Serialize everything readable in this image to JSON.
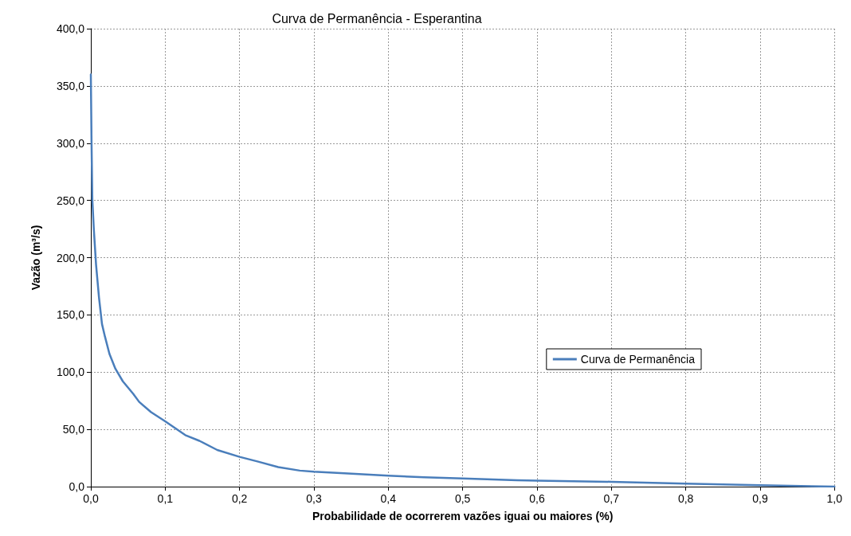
{
  "chart_data": {
    "type": "line",
    "title": "Curva de Permanência - Esperantina",
    "xlabel": "Probabilidade de ocorrerem vazões iguai ou maiores (%)",
    "ylabel": "Vazão (m³/s)",
    "xlim": [
      0,
      1
    ],
    "ylim": [
      0,
      400
    ],
    "xticks": [
      {
        "value": 0,
        "label": "0,0"
      },
      {
        "value": 0.1,
        "label": "0,1"
      },
      {
        "value": 0.2,
        "label": "0,2"
      },
      {
        "value": 0.3,
        "label": "0,3"
      },
      {
        "value": 0.4,
        "label": "0,4"
      },
      {
        "value": 0.5,
        "label": "0,5"
      },
      {
        "value": 0.6,
        "label": "0,6"
      },
      {
        "value": 0.7,
        "label": "0,7"
      },
      {
        "value": 0.8,
        "label": "0,8"
      },
      {
        "value": 0.9,
        "label": "0,9"
      },
      {
        "value": 1,
        "label": "1,0"
      }
    ],
    "yticks": [
      {
        "value": 0,
        "label": "0,0"
      },
      {
        "value": 50,
        "label": "50,0"
      },
      {
        "value": 100,
        "label": "100,0"
      },
      {
        "value": 150,
        "label": "150,0"
      },
      {
        "value": 200,
        "label": "200,0"
      },
      {
        "value": 250,
        "label": "250,0"
      },
      {
        "value": 300,
        "label": "300,0"
      },
      {
        "value": 350,
        "label": "350,0"
      },
      {
        "value": 400,
        "label": "400,0"
      }
    ],
    "grid": true,
    "legend": "right",
    "marker": "none",
    "line_style": "solid",
    "series": [
      {
        "name": "Curva de Permanência",
        "color": "#4a7ebb",
        "x": [
          0,
          0.001,
          0.002,
          0.004,
          0.007,
          0.011,
          0.015,
          0.019,
          0.025,
          0.033,
          0.043,
          0.057,
          0.065,
          0.081,
          0.1,
          0.127,
          0.146,
          0.17,
          0.2,
          0.224,
          0.252,
          0.281,
          0.3,
          0.341,
          0.4,
          0.448,
          0.5,
          0.573,
          0.6,
          0.7,
          0.8,
          0.9,
          1
        ],
        "values": [
          360,
          298,
          251,
          225,
          194,
          165,
          142,
          131,
          116,
          103,
          92,
          81,
          74,
          65,
          57,
          45,
          40,
          32,
          26,
          22,
          17,
          14,
          13,
          11.6,
          9.5,
          8.1,
          7.2,
          5.6,
          5.3,
          4.2,
          2.6,
          1.2,
          0
        ]
      }
    ]
  }
}
